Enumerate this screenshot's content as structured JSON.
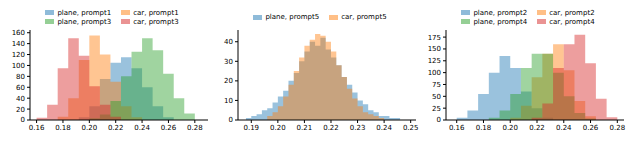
{
  "chart_data": [
    {
      "type": "histogram",
      "grid": false,
      "legend": "top",
      "xlim": [
        0.155,
        0.29
      ],
      "xticks": [
        0.16,
        0.18,
        {
          "value": 0.2,
          "label": "0.20"
        },
        0.22,
        0.24,
        0.26,
        0.28
      ],
      "ylim": [
        0,
        165
      ],
      "yticks": [
        0,
        20,
        40,
        60,
        80,
        100,
        120,
        140,
        160
      ],
      "series": [
        {
          "name": "plane, prompt1",
          "color": "#1f77b4",
          "bins": [
            0.192,
            0.2,
            0.208,
            0.216,
            0.224,
            0.232,
            0.24,
            0.248,
            0.256,
            0.264
          ],
          "values": [
            5,
            25,
            75,
            105,
            115,
            95,
            60,
            25,
            5
          ]
        },
        {
          "name": "car, prompt1",
          "color": "#ff7f0e",
          "bins": [
            0.176,
            0.184,
            0.192,
            0.2,
            0.208,
            0.216,
            0.224,
            0.232,
            0.24
          ],
          "values": [
            6,
            40,
            110,
            155,
            120,
            70,
            25,
            5
          ]
        },
        {
          "name": "plane, prompt3",
          "color": "#2ca02c",
          "bins": [
            0.2,
            0.208,
            0.216,
            0.224,
            0.232,
            0.24,
            0.248,
            0.256,
            0.264,
            0.272,
            0.28
          ],
          "values": [
            3,
            10,
            35,
            80,
            125,
            150,
            128,
            85,
            40,
            12
          ]
        },
        {
          "name": "car, prompt3",
          "color": "#d62728",
          "bins": [
            0.16,
            0.168,
            0.176,
            0.184,
            0.192,
            0.2,
            0.208,
            0.216,
            0.224
          ],
          "values": [
            4,
            28,
            95,
            150,
            118,
            62,
            28,
            6
          ]
        }
      ]
    },
    {
      "type": "histogram",
      "grid": false,
      "legend": "top",
      "xlim": [
        0.185,
        0.252
      ],
      "xticks": [
        0.19,
        {
          "value": 0.2,
          "label": "0.20"
        },
        0.21,
        0.22,
        0.23,
        0.24,
        0.25
      ],
      "ylim": [
        0,
        46
      ],
      "yticks": [
        0,
        10,
        20,
        30,
        40
      ],
      "series": [
        {
          "name": "plane, prompt5",
          "color": "#1f77b4",
          "bins": [
            0.188,
            0.19,
            0.192,
            0.194,
            0.196,
            0.198,
            0.2,
            0.202,
            0.204,
            0.206,
            0.208,
            0.21,
            0.212,
            0.214,
            0.216,
            0.218,
            0.22,
            0.222,
            0.224,
            0.226,
            0.228,
            0.23,
            0.232,
            0.234,
            0.236,
            0.238,
            0.24,
            0.242,
            0.244,
            0.246
          ],
          "values": [
            1,
            2,
            3,
            5,
            6,
            9,
            12,
            15,
            20,
            24,
            30,
            35,
            40,
            38,
            42,
            36,
            32,
            28,
            22,
            18,
            14,
            10,
            8,
            5,
            4,
            2,
            2,
            1,
            1
          ]
        },
        {
          "name": "car, prompt5",
          "color": "#ff7f0e",
          "bins": [
            0.196,
            0.198,
            0.2,
            0.202,
            0.204,
            0.206,
            0.208,
            0.21,
            0.212,
            0.214,
            0.216,
            0.218,
            0.22,
            0.222,
            0.224,
            0.226,
            0.228,
            0.23,
            0.232,
            0.234,
            0.236,
            0.238,
            0.24
          ],
          "values": [
            2,
            4,
            7,
            12,
            18,
            25,
            32,
            38,
            41,
            44,
            43,
            40,
            35,
            28,
            22,
            16,
            11,
            7,
            4,
            3,
            2,
            1
          ]
        }
      ]
    },
    {
      "type": "histogram",
      "grid": false,
      "legend": "top",
      "xlim": [
        0.152,
        0.285
      ],
      "xticks": [
        0.16,
        0.18,
        {
          "value": 0.2,
          "label": "0.20"
        },
        0.22,
        0.24,
        0.26,
        0.28
      ],
      "ylim": [
        0,
        190
      ],
      "yticks": [
        0,
        25,
        50,
        75,
        100,
        125,
        150,
        175
      ],
      "series": [
        {
          "name": "plane, prompt2",
          "color": "#1f77b4",
          "bins": [
            0.16,
            0.168,
            0.176,
            0.184,
            0.192,
            0.2,
            0.208,
            0.216,
            0.224,
            0.232
          ],
          "values": [
            5,
            20,
            55,
            100,
            135,
            110,
            60,
            25,
            5
          ]
        },
        {
          "name": "car, prompt2",
          "color": "#ff7f0e",
          "bins": [
            0.2,
            0.208,
            0.216,
            0.224,
            0.232,
            0.24,
            0.248,
            0.256,
            0.264
          ],
          "values": [
            5,
            30,
            90,
            140,
            160,
            105,
            40,
            8
          ]
        },
        {
          "name": "plane, prompt4",
          "color": "#2ca02c",
          "bins": [
            0.184,
            0.192,
            0.2,
            0.208,
            0.216,
            0.224,
            0.232,
            0.24,
            0.248,
            0.256,
            0.264
          ],
          "values": [
            5,
            20,
            55,
            110,
            140,
            140,
            100,
            50,
            15,
            3
          ]
        },
        {
          "name": "car, prompt4",
          "color": "#d62728",
          "bins": [
            0.216,
            0.224,
            0.232,
            0.24,
            0.248,
            0.256,
            0.264,
            0.272,
            0.28
          ],
          "values": [
            5,
            35,
            110,
            160,
            180,
            120,
            45,
            6
          ]
        }
      ]
    }
  ]
}
